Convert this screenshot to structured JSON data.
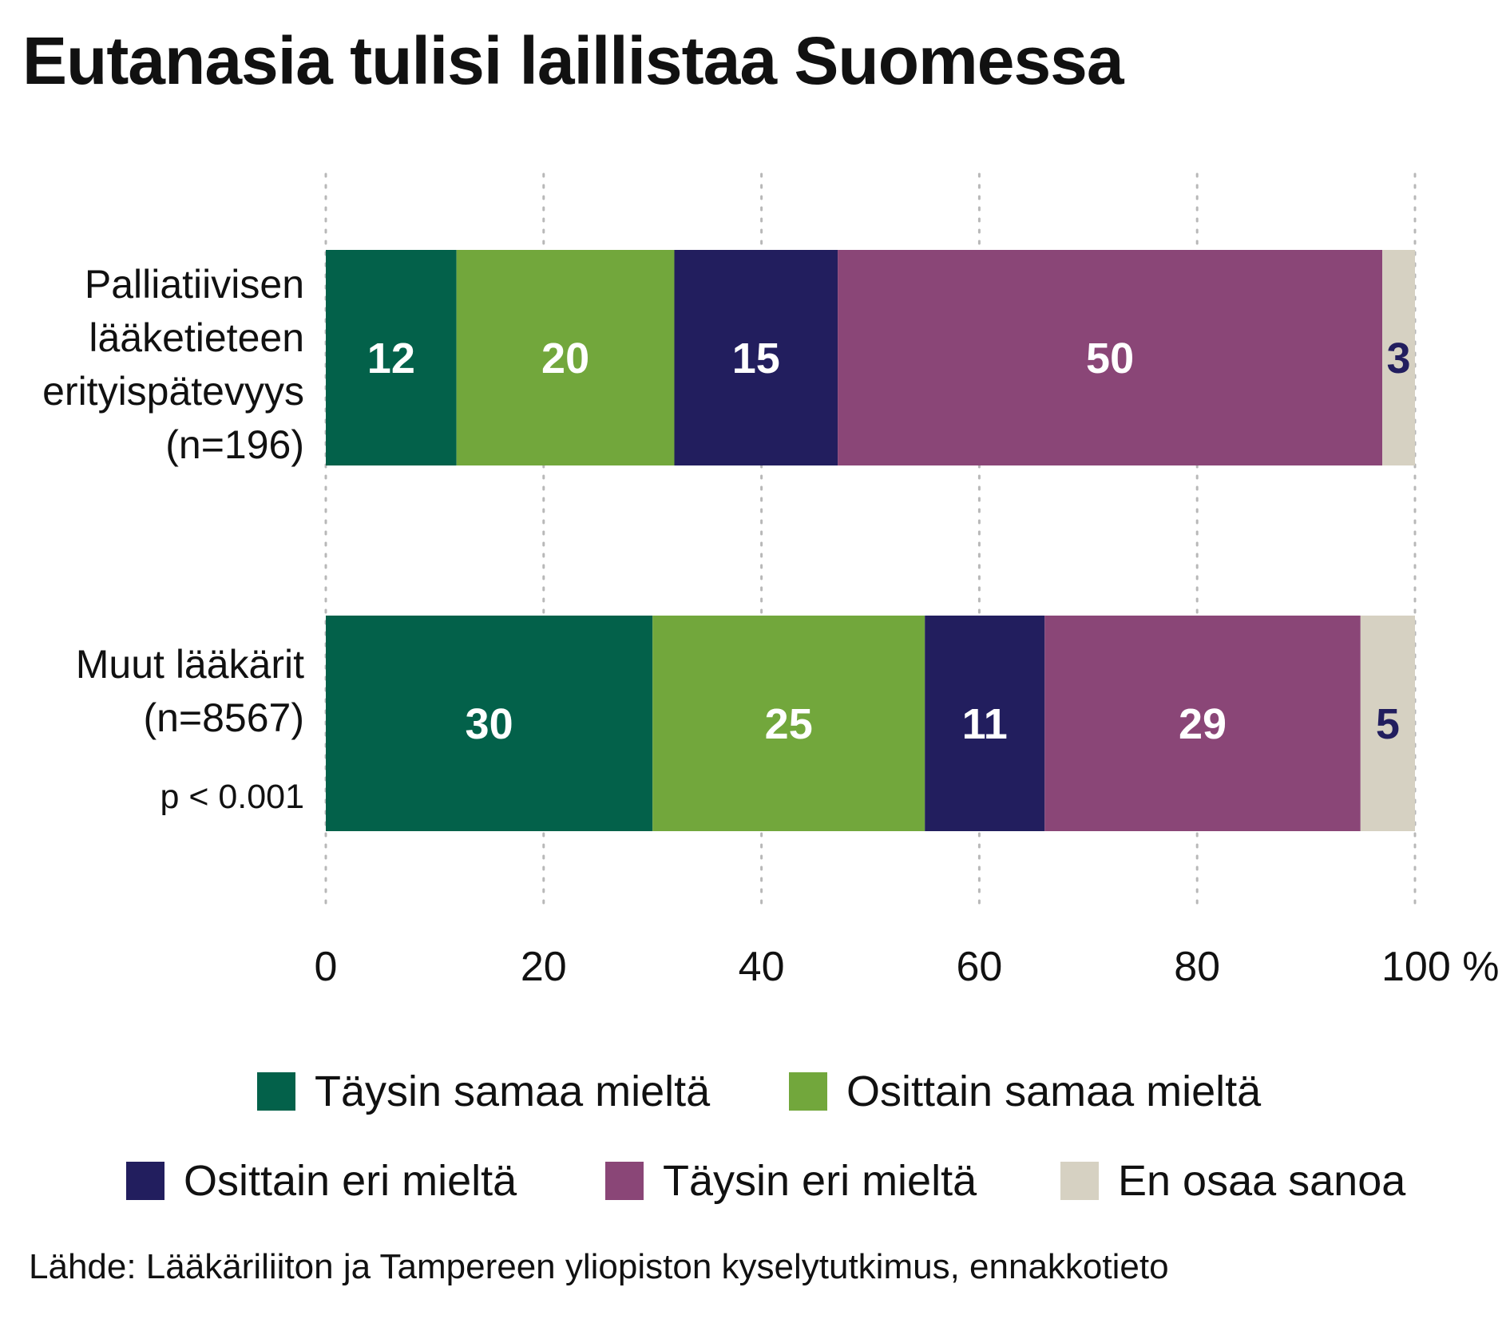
{
  "title": "Eutanasia tulisi laillistaa Suomessa",
  "chart_data": {
    "type": "bar",
    "orientation": "horizontal",
    "stacked": true,
    "categories": [
      "Palliatiivisen lääketieteen erityispätevyys (n=196)",
      "Muut lääkärit (n=8567)"
    ],
    "category_lines": [
      [
        "Palliatiivisen",
        "lääketieteen",
        "erityispätevyys",
        "(n=196)"
      ],
      [
        "Muut lääkärit",
        "(n=8567)"
      ]
    ],
    "series": [
      {
        "name": "Täysin samaa mieltä",
        "values": [
          12,
          30
        ],
        "color": "#03614a",
        "label_color": "#ffffff"
      },
      {
        "name": "Osittain samaa mieltä",
        "values": [
          20,
          25
        ],
        "color": "#72a73c",
        "label_color": "#ffffff"
      },
      {
        "name": "Osittain eri mieltä",
        "values": [
          15,
          11
        ],
        "color": "#221e5e",
        "label_color": "#ffffff"
      },
      {
        "name": "Täysin eri mieltä",
        "values": [
          50,
          29
        ],
        "color": "#8a4677",
        "label_color": "#ffffff"
      },
      {
        "name": "En osaa sanoa",
        "values": [
          3,
          5
        ],
        "color": "#d6d1c2",
        "label_color": "#221e5e"
      }
    ],
    "xlim": [
      0,
      100
    ],
    "xticks": [
      "0",
      "20",
      "40",
      "60",
      "80",
      "100 %"
    ],
    "grid": true,
    "legend_position": "bottom",
    "annotation": "p < 0.001"
  },
  "source": "Lähde: Lääkäriliiton ja Tampereen yliopiston kyselytutkimus, ennakkotieto"
}
